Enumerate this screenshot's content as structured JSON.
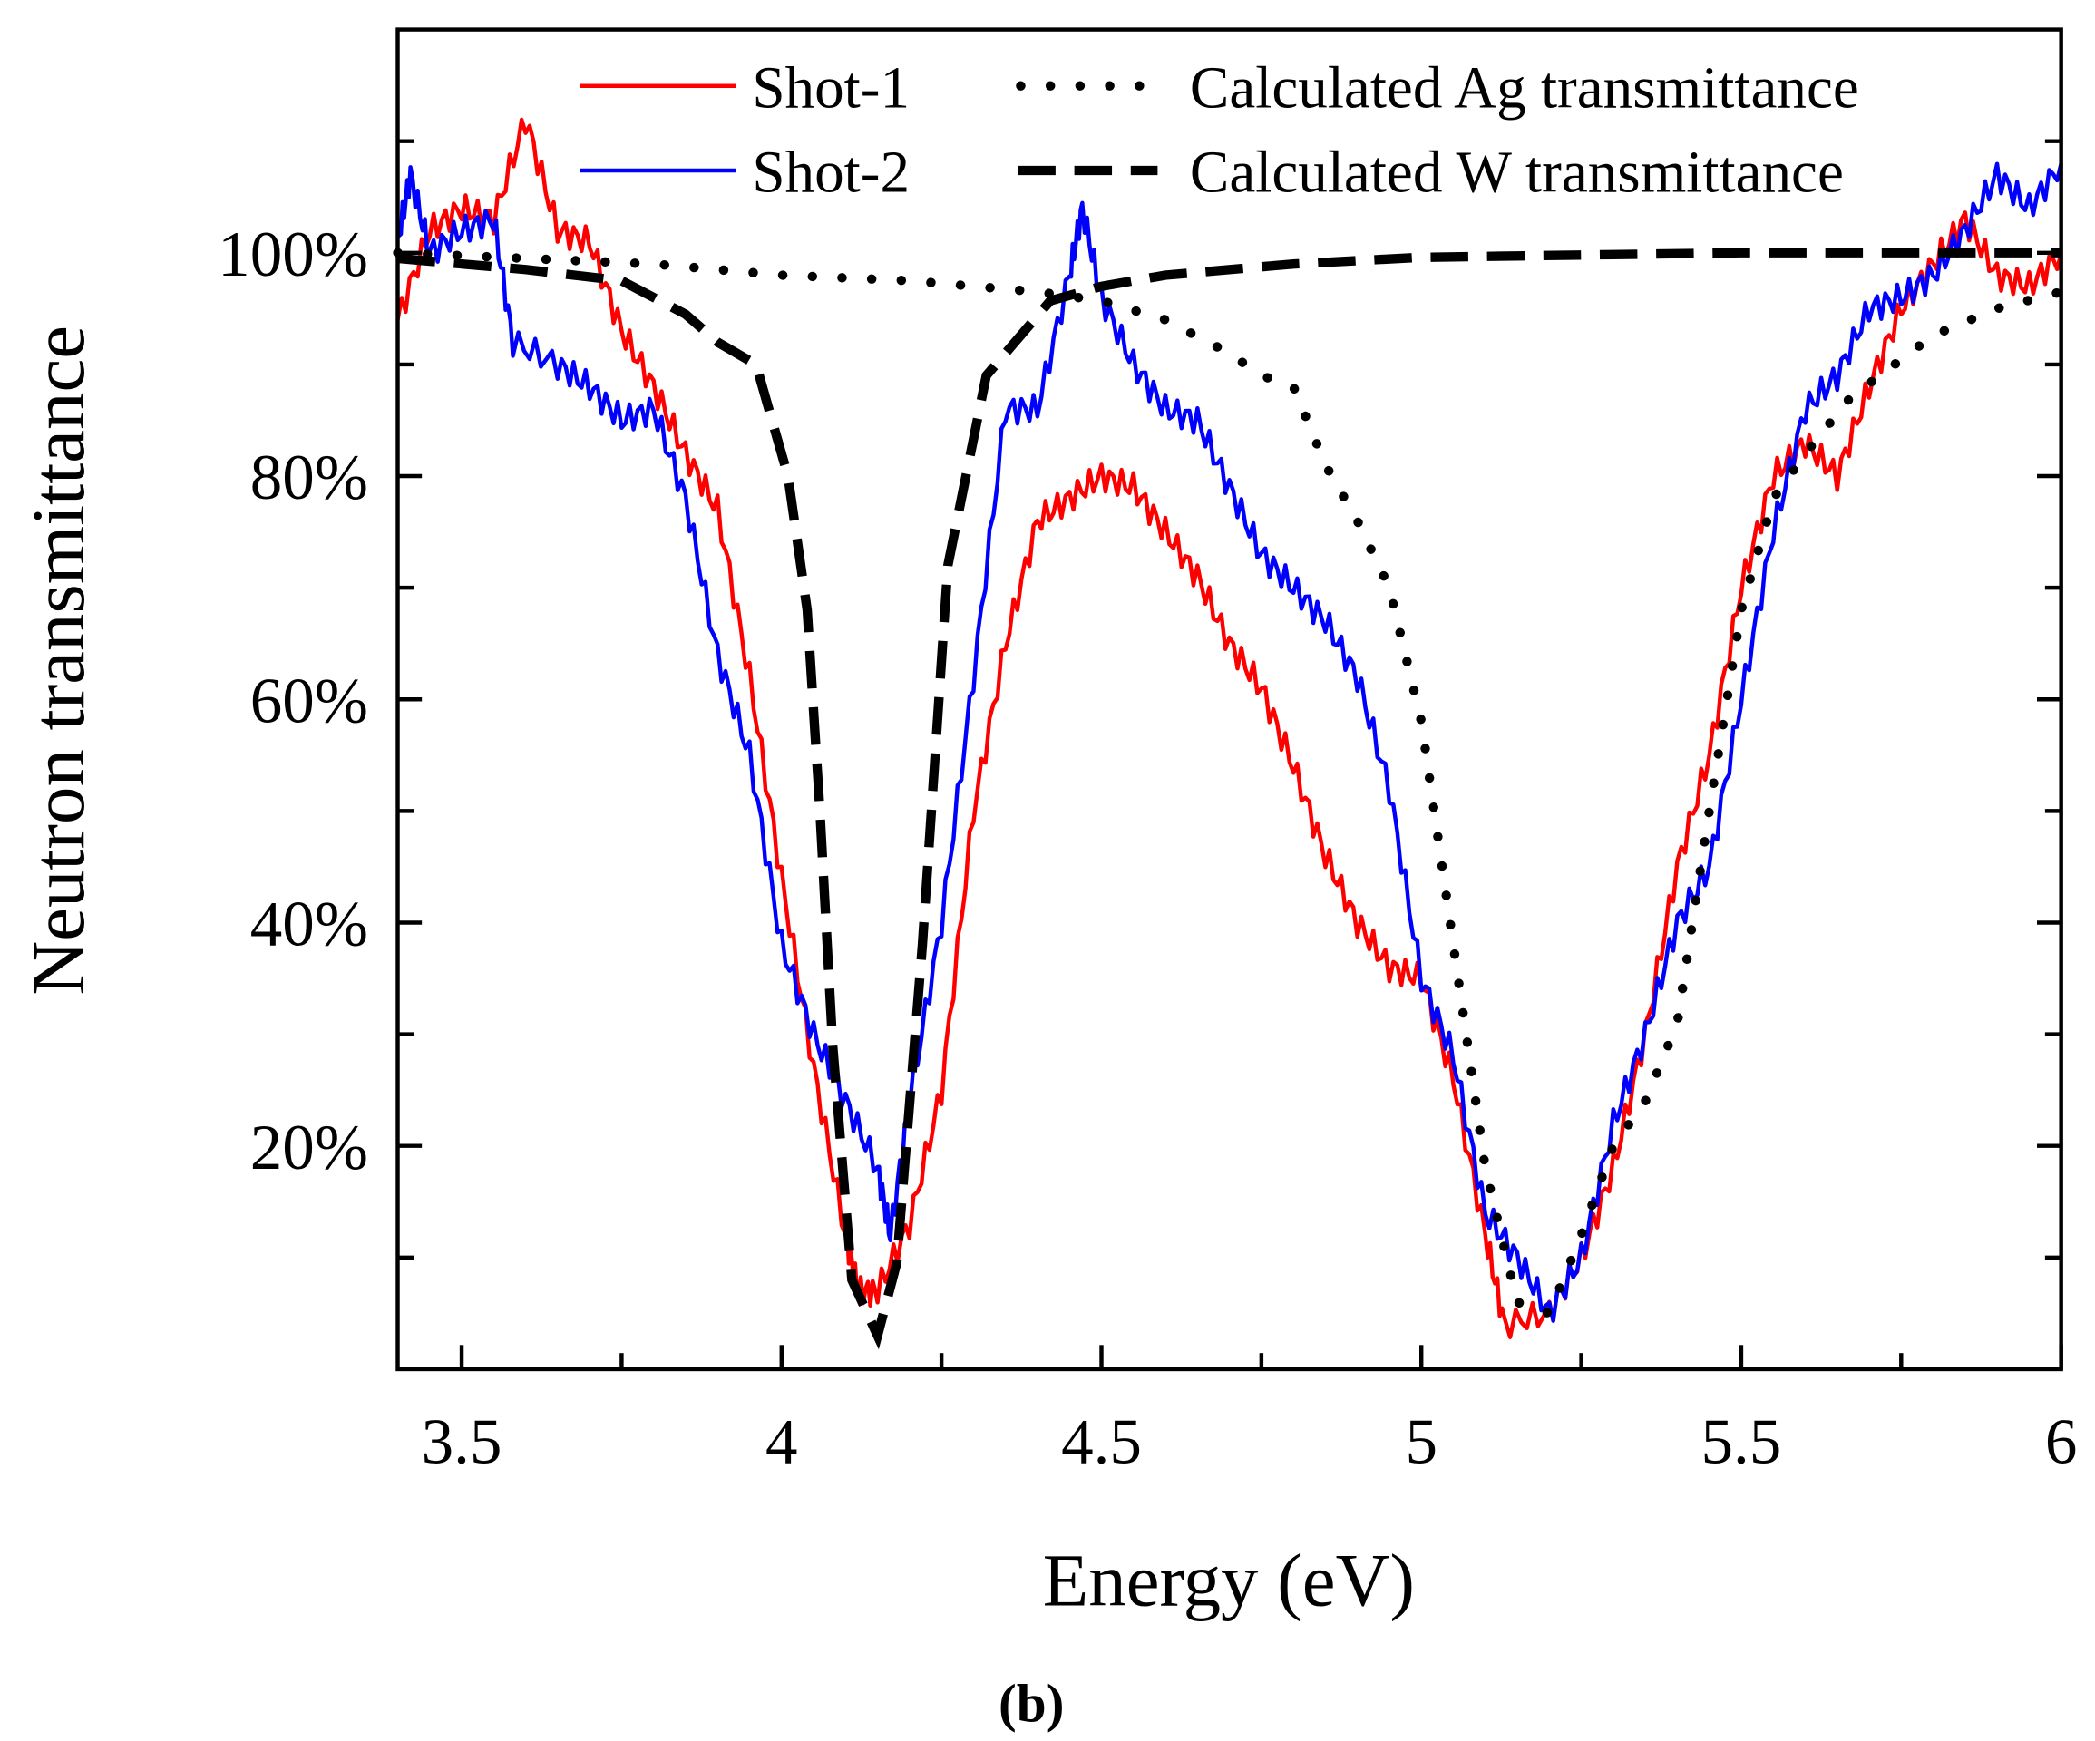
{
  "chart_data": {
    "type": "line",
    "title": "",
    "xlabel": "Energy (eV)",
    "ylabel": "Neutron transmittance",
    "caption": "(b)",
    "xlim": [
      3.4,
      6.0
    ],
    "ylim": [
      0,
      120
    ],
    "xticks": [
      3.5,
      4,
      4.5,
      5,
      5.5,
      6
    ],
    "xtick_labels": [
      "3.5",
      "4",
      "4.5",
      "5",
      "5.5",
      "6"
    ],
    "yticks": [
      20,
      40,
      60,
      80,
      100
    ],
    "ytick_labels": [
      "20%",
      "40%",
      "60%",
      "80%",
      "100%"
    ],
    "grid": false,
    "legend_position": "top",
    "series": [
      {
        "name": "Shot-1",
        "color": "#ff0000",
        "style": "solid",
        "x": [
          3.4,
          3.45,
          3.5,
          3.55,
          3.6,
          3.65,
          3.7,
          3.75,
          3.8,
          3.85,
          3.9,
          3.95,
          4.0,
          4.05,
          4.1,
          4.12,
          4.15,
          4.2,
          4.25,
          4.3,
          4.35,
          4.4,
          4.45,
          4.5,
          4.55,
          4.6,
          4.65,
          4.7,
          4.75,
          4.8,
          4.85,
          4.9,
          4.95,
          5.0,
          5.05,
          5.1,
          5.13,
          5.2,
          5.25,
          5.3,
          5.35,
          5.4,
          5.45,
          5.5,
          5.55,
          5.6,
          5.65,
          5.7,
          5.75,
          5.8,
          5.85,
          5.9,
          5.95,
          6.0
        ],
        "y": [
          94,
          102,
          104,
          103,
          112,
          102,
          101,
          93,
          88,
          82,
          77,
          62,
          44,
          27,
          12,
          7,
          7,
          13,
          25,
          50,
          65,
          76,
          78,
          80,
          79,
          75,
          71,
          65,
          61,
          54,
          46,
          40,
          36,
          35,
          26,
          12,
          4,
          5,
          10,
          18,
          30,
          45,
          55,
          70,
          80,
          83,
          80,
          88,
          95,
          99,
          103,
          98,
          97,
          100
        ]
      },
      {
        "name": "Shot-2",
        "color": "#0000ff",
        "style": "solid",
        "x": [
          3.4,
          3.42,
          3.45,
          3.5,
          3.55,
          3.58,
          3.65,
          3.7,
          3.75,
          3.8,
          3.85,
          3.9,
          3.95,
          4.0,
          4.05,
          4.1,
          4.15,
          4.17,
          4.2,
          4.25,
          4.3,
          4.35,
          4.4,
          4.45,
          4.47,
          4.5,
          4.55,
          4.6,
          4.65,
          4.7,
          4.75,
          4.8,
          4.85,
          4.9,
          4.95,
          5.0,
          5.05,
          5.1,
          5.15,
          5.2,
          5.25,
          5.3,
          5.35,
          5.4,
          5.45,
          5.5,
          5.55,
          5.6,
          5.65,
          5.7,
          5.75,
          5.8,
          5.85,
          5.9,
          5.95,
          6.0
        ],
        "y": [
          101,
          107,
          100,
          102,
          103,
          92,
          90,
          88,
          85,
          86,
          78,
          64,
          55,
          38,
          30,
          24,
          18,
          12,
          24,
          40,
          62,
          86,
          86,
          98,
          104,
          96,
          90,
          86,
          85,
          79,
          73,
          70,
          67,
          62,
          52,
          35,
          28,
          14,
          10,
          5,
          10,
          22,
          30,
          40,
          45,
          60,
          75,
          86,
          89,
          95,
          96,
          98,
          102,
          107,
          104,
          108
        ]
      },
      {
        "name": "Calculated Ag transmittance",
        "color": "#000000",
        "style": "dotted",
        "x": [
          3.4,
          3.6,
          3.8,
          4.0,
          4.2,
          4.3,
          4.4,
          4.5,
          4.6,
          4.7,
          4.75,
          4.8,
          4.85,
          4.9,
          4.95,
          5.0,
          5.05,
          5.1,
          5.15,
          5.2,
          5.25,
          5.3,
          5.35,
          5.4,
          5.45,
          5.5,
          5.55,
          5.6,
          5.67,
          5.8,
          5.9,
          6.0
        ],
        "y": [
          100,
          99.5,
          99,
          98,
          97.5,
          97,
          96.5,
          95.7,
          94,
          91,
          89,
          88,
          81,
          76,
          70,
          58,
          38,
          18,
          6,
          5,
          12,
          20,
          24,
          31,
          50,
          68,
          78,
          82,
          87,
          92.6,
          95,
          96.5
        ]
      },
      {
        "name": "Calculated W transmittance",
        "color": "#000000",
        "style": "dashed",
        "x": [
          3.4,
          3.6,
          3.75,
          3.85,
          3.9,
          3.96,
          4.01,
          4.04,
          4.06,
          4.08,
          4.11,
          4.15,
          4.18,
          4.22,
          4.26,
          4.32,
          4.42,
          4.5,
          4.6,
          4.8,
          5.0,
          5.5,
          6.0
        ],
        "y": [
          99.5,
          98.5,
          97.5,
          94.5,
          92,
          90,
          80,
          68,
          50,
          29,
          8,
          3,
          9.5,
          38,
          72,
          89,
          95.7,
          97,
          98,
          99,
          99.6,
          100,
          100
        ]
      }
    ]
  }
}
